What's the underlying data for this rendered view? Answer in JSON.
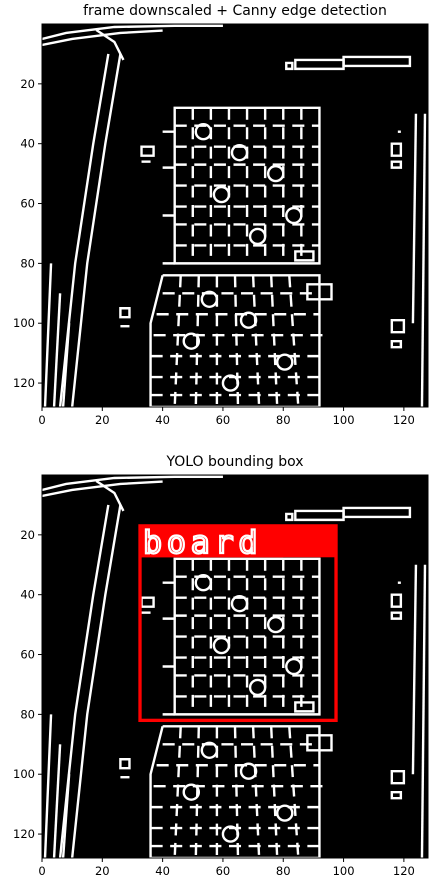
{
  "panels": [
    {
      "title": "frame downscaled + Canny edge detection",
      "x_ticks": [
        0,
        20,
        40,
        60,
        80,
        100,
        120
      ],
      "y_ticks": [
        20,
        40,
        60,
        80,
        100,
        120
      ],
      "xlim": [
        0,
        128
      ],
      "ylim": [
        0,
        128
      ],
      "has_bbox": false
    },
    {
      "title": "YOLO bounding box",
      "x_ticks": [
        0,
        20,
        40,
        60,
        80,
        100,
        120
      ],
      "y_ticks": [
        20,
        40,
        60,
        80,
        100,
        120
      ],
      "xlim": [
        0,
        128
      ],
      "ylim": [
        0,
        128
      ],
      "has_bbox": true,
      "bbox": {
        "label": "board",
        "x0": 32,
        "y0": 17,
        "x1": 97,
        "y1": 82,
        "color": "#ff0000"
      }
    }
  ]
}
